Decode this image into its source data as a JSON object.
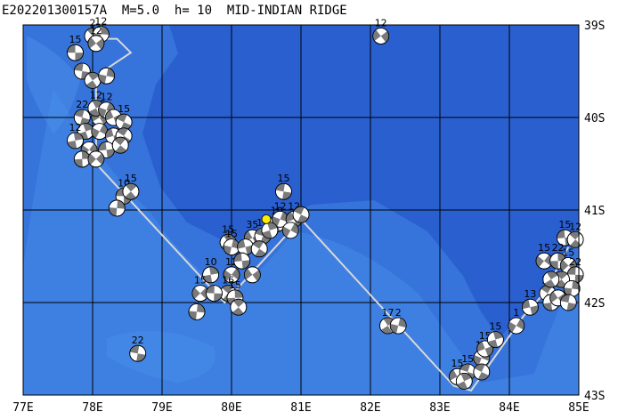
{
  "title": "E202201300157A  M=5.0  h= 10  MID-INDIAN RIDGE",
  "map": {
    "lon_range": [
      77,
      85
    ],
    "lat_range": [
      -43,
      -39
    ],
    "lon_labels": [
      "77E",
      "78E",
      "79E",
      "80E",
      "81E",
      "82E",
      "83E",
      "84E",
      "85E"
    ],
    "lat_labels": [
      "39S",
      "40S",
      "41S",
      "42S",
      "43S"
    ],
    "colors": {
      "ocean_deep": "#2a5fd0",
      "ocean_shallow": "#3f84e3",
      "grid": "#000000",
      "plate_boundary": "#d8d8d8",
      "epicenter": "#ffee00"
    }
  },
  "epicenter": {
    "lon": 80.5,
    "lat": -41.1
  },
  "plate_boundary": [
    [
      77.9,
      -39.15
    ],
    [
      78.35,
      -39.15
    ],
    [
      78.55,
      -39.3
    ],
    [
      78.05,
      -39.55
    ],
    [
      78.05,
      -40.5
    ],
    [
      79.9,
      -42.0
    ],
    [
      81.0,
      -41.1
    ],
    [
      83.2,
      -42.9
    ],
    [
      83.45,
      -42.95
    ],
    [
      84.2,
      -42.15
    ],
    [
      84.5,
      -41.9
    ],
    [
      84.85,
      -41.4
    ]
  ],
  "events": [
    {
      "lon": 77.75,
      "lat": -39.3,
      "depth": "15"
    },
    {
      "lon": 78.0,
      "lat": -39.12,
      "depth": "2"
    },
    {
      "lon": 78.12,
      "lat": -39.1,
      "depth": "12"
    },
    {
      "lon": 78.05,
      "lat": -39.2,
      "depth": "12"
    },
    {
      "lon": 77.85,
      "lat": -39.5,
      "depth": ""
    },
    {
      "lon": 78.0,
      "lat": -39.6,
      "depth": ""
    },
    {
      "lon": 78.2,
      "lat": -39.55,
      "depth": ""
    },
    {
      "lon": 78.1,
      "lat": -40.0,
      "depth": "15"
    },
    {
      "lon": 77.85,
      "lat": -40.0,
      "depth": "22"
    },
    {
      "lon": 78.05,
      "lat": -39.9,
      "depth": "12"
    },
    {
      "lon": 78.2,
      "lat": -39.92,
      "depth": "12"
    },
    {
      "lon": 78.3,
      "lat": -40.0,
      "depth": ""
    },
    {
      "lon": 78.45,
      "lat": -40.05,
      "depth": "15"
    },
    {
      "lon": 77.9,
      "lat": -40.15,
      "depth": ""
    },
    {
      "lon": 78.1,
      "lat": -40.15,
      "depth": ""
    },
    {
      "lon": 78.3,
      "lat": -40.2,
      "depth": ""
    },
    {
      "lon": 78.45,
      "lat": -40.2,
      "depth": ""
    },
    {
      "lon": 77.75,
      "lat": -40.25,
      "depth": "12"
    },
    {
      "lon": 77.95,
      "lat": -40.35,
      "depth": ""
    },
    {
      "lon": 78.2,
      "lat": -40.35,
      "depth": ""
    },
    {
      "lon": 78.4,
      "lat": -40.3,
      "depth": ""
    },
    {
      "lon": 77.85,
      "lat": -40.45,
      "depth": ""
    },
    {
      "lon": 78.05,
      "lat": -40.45,
      "depth": ""
    },
    {
      "lon": 78.45,
      "lat": -40.85,
      "depth": "10"
    },
    {
      "lon": 78.55,
      "lat": -40.8,
      "depth": "15"
    },
    {
      "lon": 78.35,
      "lat": -40.98,
      "depth": ""
    },
    {
      "lon": 82.15,
      "lat": -39.12,
      "depth": "12"
    },
    {
      "lon": 80.75,
      "lat": -40.8,
      "depth": "15"
    },
    {
      "lon": 79.95,
      "lat": -41.35,
      "depth": "15"
    },
    {
      "lon": 80.0,
      "lat": -41.4,
      "depth": "15"
    },
    {
      "lon": 80.3,
      "lat": -41.3,
      "depth": "35"
    },
    {
      "lon": 80.45,
      "lat": -41.28,
      "depth": "15"
    },
    {
      "lon": 80.65,
      "lat": -41.15,
      "depth": "10"
    },
    {
      "lon": 80.7,
      "lat": -41.1,
      "depth": "12"
    },
    {
      "lon": 80.9,
      "lat": -41.1,
      "depth": "12"
    },
    {
      "lon": 81.0,
      "lat": -41.05,
      "depth": ""
    },
    {
      "lon": 80.55,
      "lat": -41.22,
      "depth": ""
    },
    {
      "lon": 80.85,
      "lat": -41.22,
      "depth": ""
    },
    {
      "lon": 80.2,
      "lat": -41.4,
      "depth": ""
    },
    {
      "lon": 80.4,
      "lat": -41.42,
      "depth": ""
    },
    {
      "lon": 79.7,
      "lat": -41.7,
      "depth": "10"
    },
    {
      "lon": 80.0,
      "lat": -41.7,
      "depth": "12"
    },
    {
      "lon": 80.15,
      "lat": -41.55,
      "depth": ""
    },
    {
      "lon": 79.95,
      "lat": -41.9,
      "depth": "16"
    },
    {
      "lon": 80.05,
      "lat": -41.95,
      "depth": "15"
    },
    {
      "lon": 79.55,
      "lat": -41.9,
      "depth": "15"
    },
    {
      "lon": 79.75,
      "lat": -41.9,
      "depth": ""
    },
    {
      "lon": 80.1,
      "lat": -42.05,
      "depth": ""
    },
    {
      "lon": 79.5,
      "lat": -42.1,
      "depth": ""
    },
    {
      "lon": 80.3,
      "lat": -41.7,
      "depth": ""
    },
    {
      "lon": 78.65,
      "lat": -42.55,
      "depth": "22"
    },
    {
      "lon": 82.25,
      "lat": -42.25,
      "depth": "17"
    },
    {
      "lon": 82.4,
      "lat": -42.25,
      "depth": "2"
    },
    {
      "lon": 83.25,
      "lat": -42.8,
      "depth": "15"
    },
    {
      "lon": 83.4,
      "lat": -42.75,
      "depth": "15"
    },
    {
      "lon": 83.35,
      "lat": -42.85,
      "depth": ""
    },
    {
      "lon": 83.6,
      "lat": -42.6,
      "depth": "15"
    },
    {
      "lon": 83.65,
      "lat": -42.5,
      "depth": "15"
    },
    {
      "lon": 83.6,
      "lat": -42.75,
      "depth": ""
    },
    {
      "lon": 83.8,
      "lat": -42.4,
      "depth": "15"
    },
    {
      "lon": 84.1,
      "lat": -42.25,
      "depth": "1"
    },
    {
      "lon": 84.3,
      "lat": -42.05,
      "depth": "13"
    },
    {
      "lon": 84.55,
      "lat": -41.9,
      "depth": "15"
    },
    {
      "lon": 84.6,
      "lat": -42.0,
      "depth": ""
    },
    {
      "lon": 84.5,
      "lat": -41.55,
      "depth": "15"
    },
    {
      "lon": 84.8,
      "lat": -41.3,
      "depth": "15"
    },
    {
      "lon": 84.95,
      "lat": -41.32,
      "depth": "12"
    },
    {
      "lon": 84.7,
      "lat": -41.55,
      "depth": "22"
    },
    {
      "lon": 84.85,
      "lat": -41.6,
      "depth": "15"
    },
    {
      "lon": 84.95,
      "lat": -41.7,
      "depth": "22"
    },
    {
      "lon": 84.75,
      "lat": -41.75,
      "depth": ""
    },
    {
      "lon": 84.9,
      "lat": -41.85,
      "depth": ""
    },
    {
      "lon": 84.7,
      "lat": -41.95,
      "depth": ""
    },
    {
      "lon": 84.85,
      "lat": -42.0,
      "depth": ""
    },
    {
      "lon": 84.6,
      "lat": -41.75,
      "depth": ""
    }
  ]
}
